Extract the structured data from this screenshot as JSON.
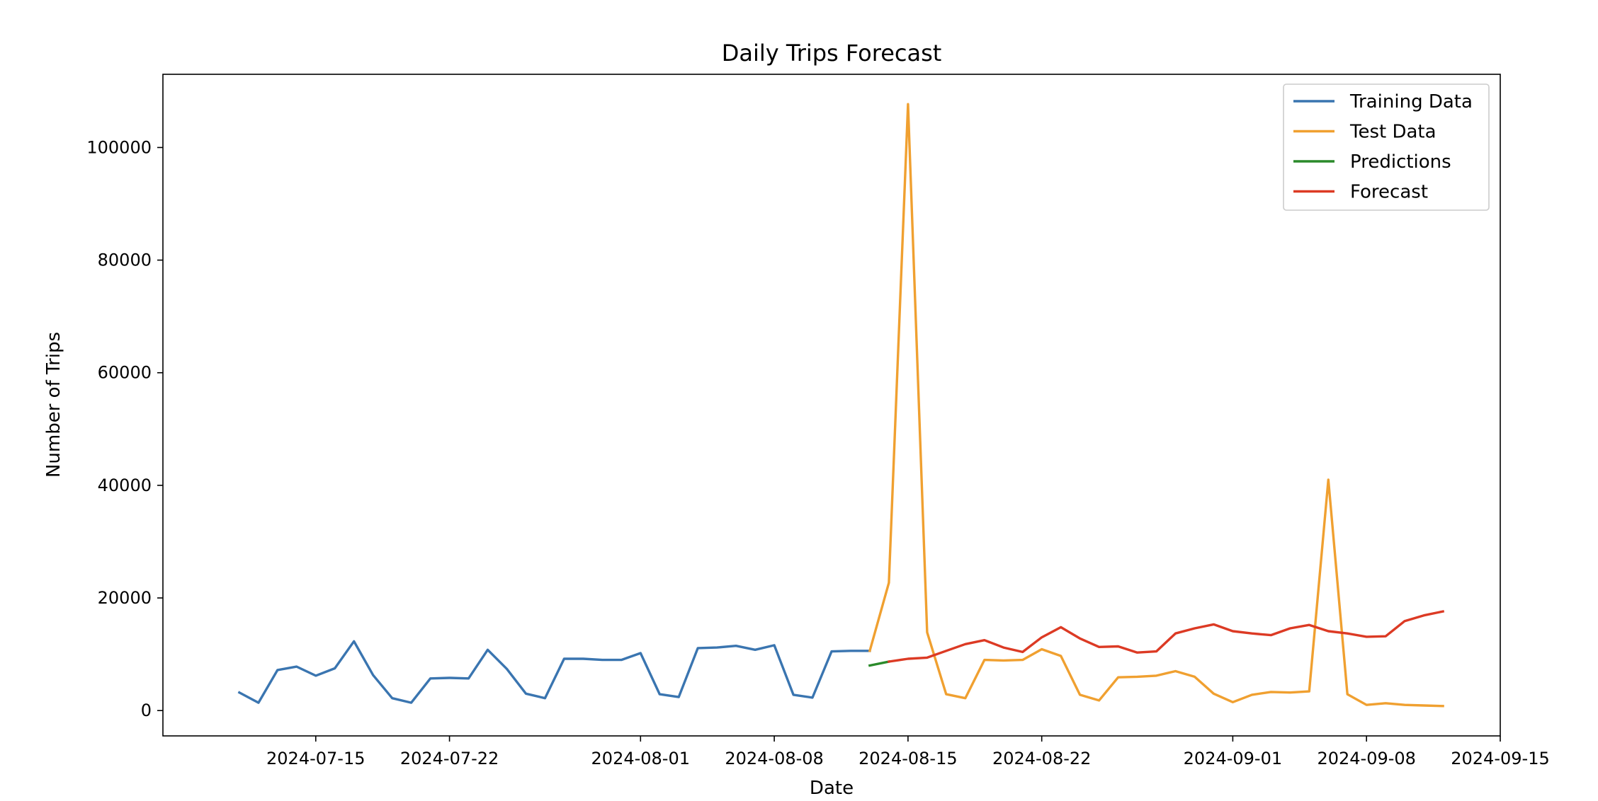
{
  "chart_data": {
    "type": "line",
    "title": "Daily Trips Forecast",
    "xlabel": "Date",
    "ylabel": "Number of Trips",
    "xlim": [
      "2024-07-07",
      "2024-09-15"
    ],
    "ylim": [
      -4500,
      113000
    ],
    "x_ticks": [
      "2024-07-15",
      "2024-07-22",
      "2024-08-01",
      "2024-08-08",
      "2024-08-15",
      "2024-08-22",
      "2024-09-01",
      "2024-09-08",
      "2024-09-15"
    ],
    "y_ticks": [
      0,
      20000,
      40000,
      60000,
      80000,
      100000
    ],
    "legend_position": "top-right",
    "grid": false,
    "series": [
      {
        "name": "Training Data",
        "color": "#3a75b0",
        "x": [
          "2024-07-11",
          "2024-07-12",
          "2024-07-13",
          "2024-07-14",
          "2024-07-15",
          "2024-07-16",
          "2024-07-17",
          "2024-07-18",
          "2024-07-19",
          "2024-07-20",
          "2024-07-21",
          "2024-07-22",
          "2024-07-23",
          "2024-07-24",
          "2024-07-25",
          "2024-07-26",
          "2024-07-27",
          "2024-07-28",
          "2024-07-29",
          "2024-07-30",
          "2024-07-31",
          "2024-08-01",
          "2024-08-02",
          "2024-08-03",
          "2024-08-04",
          "2024-08-05",
          "2024-08-06",
          "2024-08-07",
          "2024-08-08",
          "2024-08-09",
          "2024-08-10",
          "2024-08-11",
          "2024-08-12",
          "2024-08-13"
        ],
        "y": [
          3200,
          1400,
          7200,
          7800,
          6200,
          7500,
          12300,
          6300,
          2200,
          1400,
          5700,
          5800,
          5700,
          10800,
          7400,
          3000,
          2200,
          9200,
          9200,
          9000,
          9000,
          10200,
          2900,
          2400,
          11100,
          11200,
          11500,
          10800,
          11600,
          2800,
          2300,
          10500,
          10600,
          10600
        ]
      },
      {
        "name": "Test Data",
        "color": "#f0a030",
        "x": [
          "2024-08-13",
          "2024-08-14",
          "2024-08-15",
          "2024-08-16",
          "2024-08-17",
          "2024-08-18",
          "2024-08-19",
          "2024-08-20",
          "2024-08-21",
          "2024-08-22",
          "2024-08-23",
          "2024-08-24",
          "2024-08-25",
          "2024-08-26",
          "2024-08-27",
          "2024-08-28",
          "2024-08-29",
          "2024-08-30",
          "2024-08-31",
          "2024-09-01",
          "2024-09-02",
          "2024-09-03",
          "2024-09-04",
          "2024-09-05",
          "2024-09-06",
          "2024-09-07",
          "2024-09-08",
          "2024-09-09",
          "2024-09-10",
          "2024-09-11",
          "2024-09-12"
        ],
        "y": [
          10600,
          22700,
          107700,
          13900,
          2900,
          2200,
          9000,
          8900,
          9000,
          10900,
          9700,
          2800,
          1800,
          5900,
          6000,
          6200,
          7000,
          6000,
          3000,
          1500,
          2800,
          3300,
          3200,
          3400,
          41000,
          2900,
          1000,
          1300,
          1000,
          900,
          800
        ]
      },
      {
        "name": "Predictions",
        "color": "#2a8a2a",
        "x": [
          "2024-08-13",
          "2024-08-14"
        ],
        "y": [
          8000,
          8700
        ]
      },
      {
        "name": "Forecast",
        "color": "#dc3a24",
        "x": [
          "2024-08-14",
          "2024-08-15",
          "2024-08-16",
          "2024-08-17",
          "2024-08-18",
          "2024-08-19",
          "2024-08-20",
          "2024-08-21",
          "2024-08-22",
          "2024-08-23",
          "2024-08-24",
          "2024-08-25",
          "2024-08-26",
          "2024-08-27",
          "2024-08-28",
          "2024-08-29",
          "2024-08-30",
          "2024-08-31",
          "2024-09-01",
          "2024-09-02",
          "2024-09-03",
          "2024-09-04",
          "2024-09-05",
          "2024-09-06",
          "2024-09-07",
          "2024-09-08",
          "2024-09-09",
          "2024-09-10",
          "2024-09-11",
          "2024-09-12"
        ],
        "y": [
          8700,
          9200,
          9400,
          10600,
          11800,
          12500,
          11200,
          10400,
          13000,
          14800,
          12800,
          11300,
          11400,
          10300,
          10500,
          13700,
          14600,
          15300,
          14100,
          13700,
          13400,
          14600,
          15200,
          14100,
          13700,
          13100,
          13200,
          15900,
          16900,
          17600
        ]
      }
    ]
  }
}
